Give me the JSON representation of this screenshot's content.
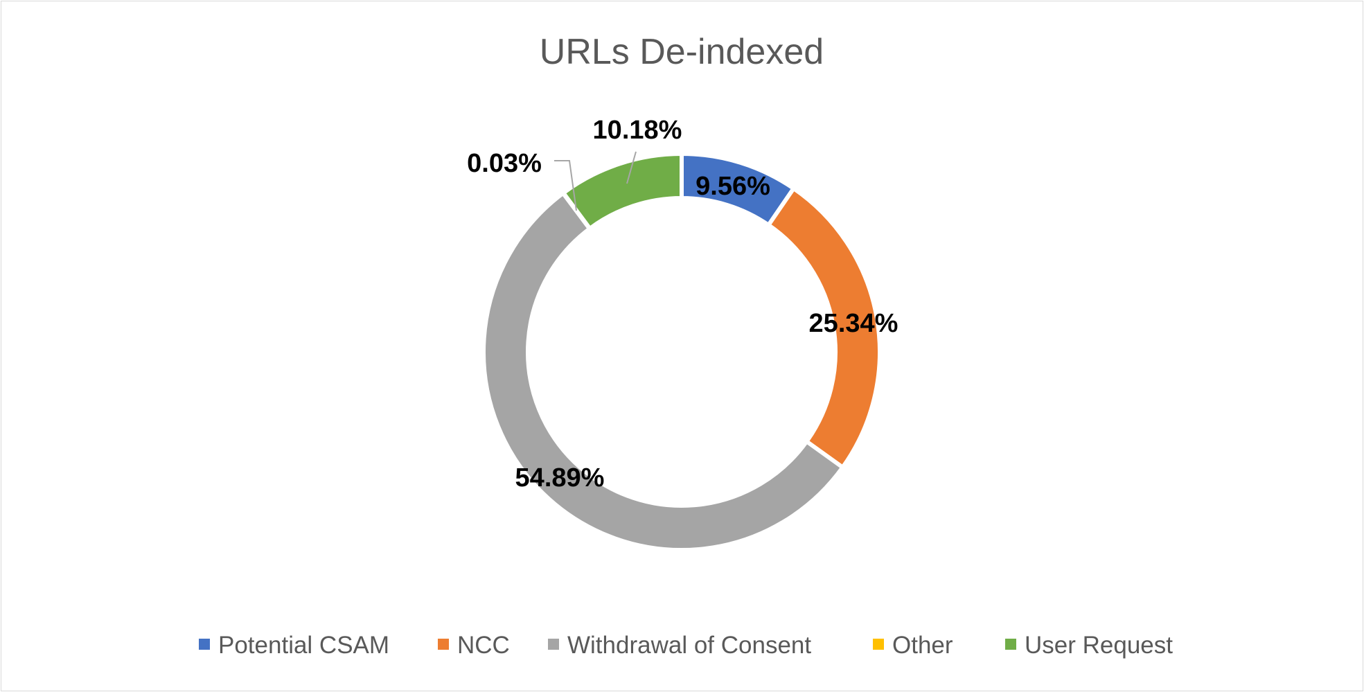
{
  "chart_data": {
    "type": "pie",
    "variant": "doughnut",
    "title": "URLs De-indexed",
    "categories": [
      "Potential CSAM",
      "NCC",
      "Withdrawal of Consent",
      "Other",
      "User Request"
    ],
    "values": [
      9.56,
      25.34,
      54.89,
      0.03,
      10.18
    ],
    "value_labels": [
      "9.56%",
      "25.34%",
      "54.89%",
      "0.03%",
      "10.18%"
    ],
    "colors": [
      "#4472C4",
      "#ED7D31",
      "#A5A5A5",
      "#FFC000",
      "#70AD47"
    ],
    "legend_position": "bottom",
    "leader_line_color": "#A6A6A6"
  }
}
